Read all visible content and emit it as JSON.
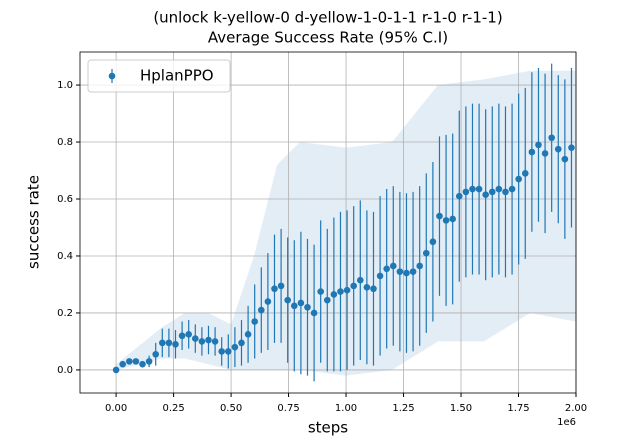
{
  "chart_data": {
    "type": "errorbar",
    "title": "(unlock k-yellow-0 d-yellow-1-0-1-1 r-1-0 r-1-1)",
    "subtitle": "Average Success Rate (95% C.I)",
    "x_label": "steps",
    "y_label": "success rate",
    "x_offset_label": "1e6",
    "xlim": [
      -157000,
      2000000
    ],
    "ylim": [
      -0.081,
      1.116
    ],
    "xticks": [
      {
        "value": 0,
        "label": "0.00"
      },
      {
        "value": 250000,
        "label": "0.25"
      },
      {
        "value": 500000,
        "label": "0.50"
      },
      {
        "value": 750000,
        "label": "0.75"
      },
      {
        "value": 1000000,
        "label": "1.00"
      },
      {
        "value": 1250000,
        "label": "1.25"
      },
      {
        "value": 1500000,
        "label": "1.50"
      },
      {
        "value": 1750000,
        "label": "1.75"
      },
      {
        "value": 2000000,
        "label": "2.00"
      }
    ],
    "yticks": [
      {
        "value": 0,
        "label": "0.0"
      },
      0.2,
      0.4,
      0.6,
      0.8,
      {
        "value": 1,
        "label": "1.0"
      }
    ],
    "grid": true,
    "legend": "upper-left",
    "band": {
      "color": "#dce8f4",
      "x": [
        0,
        200000,
        300000,
        400000,
        500000,
        600000,
        700000,
        800000,
        1000000,
        1200000,
        1400000,
        1600000,
        1800000,
        2000000
      ],
      "upper": [
        0.02,
        0.15,
        0.2,
        0.2,
        0.16,
        0.4,
        0.72,
        0.8,
        0.78,
        0.8,
        1.0,
        1.02,
        1.05,
        1.05
      ],
      "lower": [
        0,
        0.04,
        0.04,
        0.02,
        0,
        0,
        0,
        0,
        -0.02,
        0,
        0.1,
        0.1,
        0.2,
        0.17
      ]
    },
    "series": [
      {
        "name": "HplanPPO",
        "color": "#1f77b4",
        "x": [
          0,
          28700,
          57400,
          86100,
          114800,
          143500,
          172200,
          200900,
          229600,
          258300,
          287000,
          315700,
          344400,
          373100,
          401800,
          430500,
          459200,
          487900,
          516600,
          545300,
          574000,
          602700,
          631400,
          660100,
          688800,
          717500,
          746200,
          774900,
          803600,
          832300,
          861000,
          889700,
          918400,
          947100,
          975800,
          1004500,
          1033200,
          1061900,
          1090600,
          1119300,
          1148000,
          1176700,
          1205400,
          1234100,
          1262800,
          1291500,
          1320200,
          1348900,
          1377600,
          1406300,
          1435000,
          1463700,
          1492400,
          1521100,
          1549800,
          1578500,
          1607200,
          1635900,
          1664600,
          1693300,
          1722000,
          1750700,
          1779400,
          1808100,
          1836800,
          1865500,
          1894200,
          1922900,
          1951600,
          1980300
        ],
        "values": [
          0.0,
          0.02,
          0.03,
          0.03,
          0.02,
          0.03,
          0.055,
          0.095,
          0.095,
          0.09,
          0.12,
          0.125,
          0.11,
          0.1,
          0.105,
          0.1,
          0.065,
          0.065,
          0.08,
          0.095,
          0.125,
          0.17,
          0.21,
          0.24,
          0.285,
          0.295,
          0.245,
          0.225,
          0.235,
          0.22,
          0.2,
          0.275,
          0.245,
          0.265,
          0.275,
          0.28,
          0.295,
          0.315,
          0.29,
          0.285,
          0.33,
          0.355,
          0.365,
          0.345,
          0.34,
          0.345,
          0.365,
          0.41,
          0.45,
          0.54,
          0.525,
          0.53,
          0.61,
          0.625,
          0.635,
          0.635,
          0.615,
          0.625,
          0.635,
          0.625,
          0.635,
          0.67,
          0.69,
          0.765,
          0.79,
          0.76,
          0.815,
          0.775,
          0.74,
          0.78
        ],
        "errors": [
          0,
          0.01,
          0.01,
          0.01,
          0.01,
          0.02,
          0.04,
          0.05,
          0.05,
          0.05,
          0.05,
          0.05,
          0.05,
          0.05,
          0.05,
          0.05,
          0.05,
          0.06,
          0.07,
          0.08,
          0.1,
          0.13,
          0.15,
          0.17,
          0.19,
          0.2,
          0.22,
          0.23,
          0.25,
          0.24,
          0.24,
          0.25,
          0.25,
          0.27,
          0.28,
          0.28,
          0.28,
          0.28,
          0.27,
          0.27,
          0.28,
          0.28,
          0.28,
          0.28,
          0.28,
          0.28,
          0.28,
          0.28,
          0.28,
          0.28,
          0.3,
          0.3,
          0.3,
          0.3,
          0.3,
          0.3,
          0.3,
          0.3,
          0.3,
          0.3,
          0.3,
          0.3,
          0.3,
          0.28,
          0.27,
          0.28,
          0.26,
          0.26,
          0.28,
          0.28
        ]
      }
    ]
  }
}
